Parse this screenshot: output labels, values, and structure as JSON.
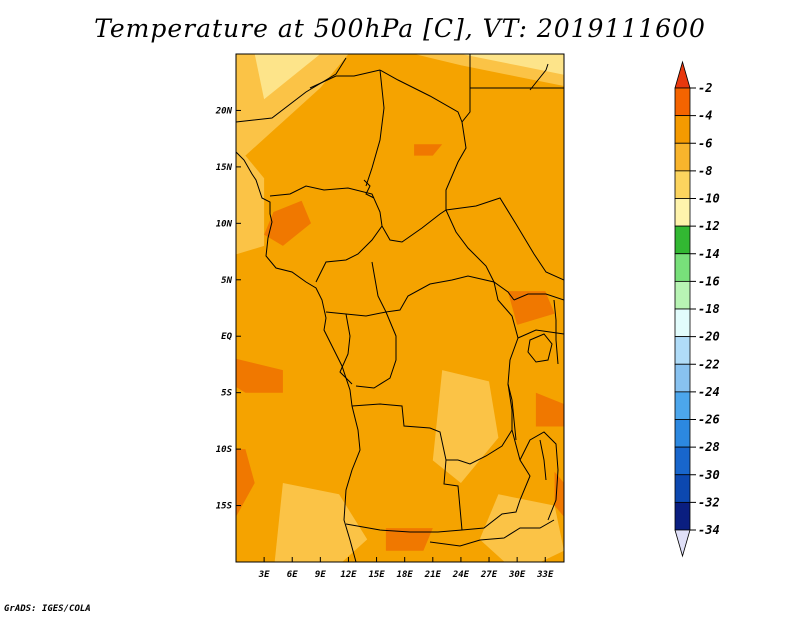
{
  "title": "Temperature at 500hPa [C], VT: 2019111600",
  "credit": "GrADS: IGES/COLA",
  "map": {
    "lon_range": [
      0,
      35
    ],
    "lat_range": [
      -20,
      25
    ],
    "lat_ticks": [
      {
        "value": 20,
        "label": "20N"
      },
      {
        "value": 15,
        "label": "15N"
      },
      {
        "value": 10,
        "label": "10N"
      },
      {
        "value": 5,
        "label": "5N"
      },
      {
        "value": 0,
        "label": "EQ"
      },
      {
        "value": -5,
        "label": "5S"
      },
      {
        "value": -10,
        "label": "10S"
      },
      {
        "value": -15,
        "label": "15S"
      }
    ],
    "lon_ticks": [
      {
        "value": 3,
        "label": "3E"
      },
      {
        "value": 6,
        "label": "6E"
      },
      {
        "value": 9,
        "label": "9E"
      },
      {
        "value": 12,
        "label": "12E"
      },
      {
        "value": 15,
        "label": "15E"
      },
      {
        "value": 18,
        "label": "18E"
      },
      {
        "value": 21,
        "label": "21E"
      },
      {
        "value": 24,
        "label": "24E"
      },
      {
        "value": 27,
        "label": "27E"
      },
      {
        "value": 30,
        "label": "30E"
      },
      {
        "value": 33,
        "label": "33E"
      }
    ],
    "dominant_band_color": "#f5a300",
    "bands": [
      {
        "color": "#fbc346",
        "polygon": [
          [
            -1,
            25
          ],
          [
            12,
            25
          ],
          [
            9,
            22
          ],
          [
            5,
            19
          ],
          [
            1,
            16
          ],
          [
            -1,
            14
          ]
        ]
      },
      {
        "color": "#fbc346",
        "polygon": [
          [
            19,
            25
          ],
          [
            36,
            25
          ],
          [
            36,
            22
          ],
          [
            30,
            23
          ],
          [
            24,
            24
          ]
        ]
      },
      {
        "color": "#fbc346",
        "polygon": [
          [
            -1,
            14
          ],
          [
            1,
            16
          ],
          [
            3,
            14
          ],
          [
            3,
            8
          ],
          [
            -1,
            7
          ]
        ]
      },
      {
        "color": "#fbc346",
        "polygon": [
          [
            22,
            -3
          ],
          [
            27,
            -4
          ],
          [
            28,
            -9
          ],
          [
            24,
            -13
          ],
          [
            21,
            -11
          ]
        ]
      },
      {
        "color": "#fbc346",
        "polygon": [
          [
            5,
            -13
          ],
          [
            11,
            -14
          ],
          [
            14,
            -18
          ],
          [
            10,
            -21
          ],
          [
            4,
            -21
          ]
        ]
      },
      {
        "color": "#fbc346",
        "polygon": [
          [
            28,
            -14
          ],
          [
            34,
            -15
          ],
          [
            35,
            -19
          ],
          [
            30,
            -21
          ],
          [
            26,
            -18
          ]
        ]
      },
      {
        "color": "#fde48a",
        "polygon": [
          [
            2,
            25
          ],
          [
            9,
            25
          ],
          [
            6,
            23
          ],
          [
            3,
            21
          ]
        ]
      },
      {
        "color": "#fde48a",
        "polygon": [
          [
            24,
            25
          ],
          [
            36,
            25
          ],
          [
            36,
            23
          ],
          [
            30,
            24
          ]
        ]
      },
      {
        "color": "#f07800",
        "polygon": [
          [
            4,
            11
          ],
          [
            7,
            12
          ],
          [
            8,
            10
          ],
          [
            5,
            8
          ],
          [
            3,
            9
          ]
        ]
      },
      {
        "color": "#f07800",
        "polygon": [
          [
            19,
            17
          ],
          [
            22,
            17
          ],
          [
            21,
            16
          ],
          [
            19,
            16
          ]
        ]
      },
      {
        "color": "#f07800",
        "polygon": [
          [
            0,
            -2
          ],
          [
            5,
            -3
          ],
          [
            5,
            -5
          ],
          [
            1,
            -5
          ],
          [
            -1,
            -4
          ]
        ]
      },
      {
        "color": "#f07800",
        "polygon": [
          [
            29,
            4
          ],
          [
            33,
            4
          ],
          [
            34,
            2
          ],
          [
            30,
            1
          ]
        ]
      },
      {
        "color": "#f07800",
        "polygon": [
          [
            32,
            -5
          ],
          [
            35,
            -6
          ],
          [
            35,
            -8
          ],
          [
            32,
            -8
          ]
        ]
      },
      {
        "color": "#f07800",
        "polygon": [
          [
            -1,
            -10
          ],
          [
            1,
            -10
          ],
          [
            2,
            -13
          ],
          [
            0,
            -16
          ],
          [
            -1,
            -16
          ]
        ]
      },
      {
        "color": "#f07800",
        "polygon": [
          [
            34,
            -12
          ],
          [
            35,
            -13
          ],
          [
            35,
            -16
          ],
          [
            34,
            -15
          ]
        ]
      },
      {
        "color": "#f07800",
        "polygon": [
          [
            16,
            -17
          ],
          [
            21,
            -17
          ],
          [
            20,
            -19
          ],
          [
            16,
            -19
          ]
        ]
      }
    ]
  },
  "colorbar": {
    "levels": [
      "-2",
      "-4",
      "-6",
      "-8",
      "-10",
      "-12",
      "-14",
      "-16",
      "-18",
      "-20",
      "-22",
      "-24",
      "-26",
      "-28",
      "-30",
      "-32",
      "-34"
    ],
    "colors": [
      "#e8380e",
      "#f56400",
      "#f59a00",
      "#f8b42c",
      "#fcd45e",
      "#fef3ac",
      "#32b832",
      "#78e07a",
      "#b8f4b4",
      "#e2fcfc",
      "#b0dcf8",
      "#88c2f0",
      "#4ca6ec",
      "#2c88e0",
      "#1866cc",
      "#0c48b0",
      "#0a1e80",
      "#e0e0f8"
    ]
  }
}
